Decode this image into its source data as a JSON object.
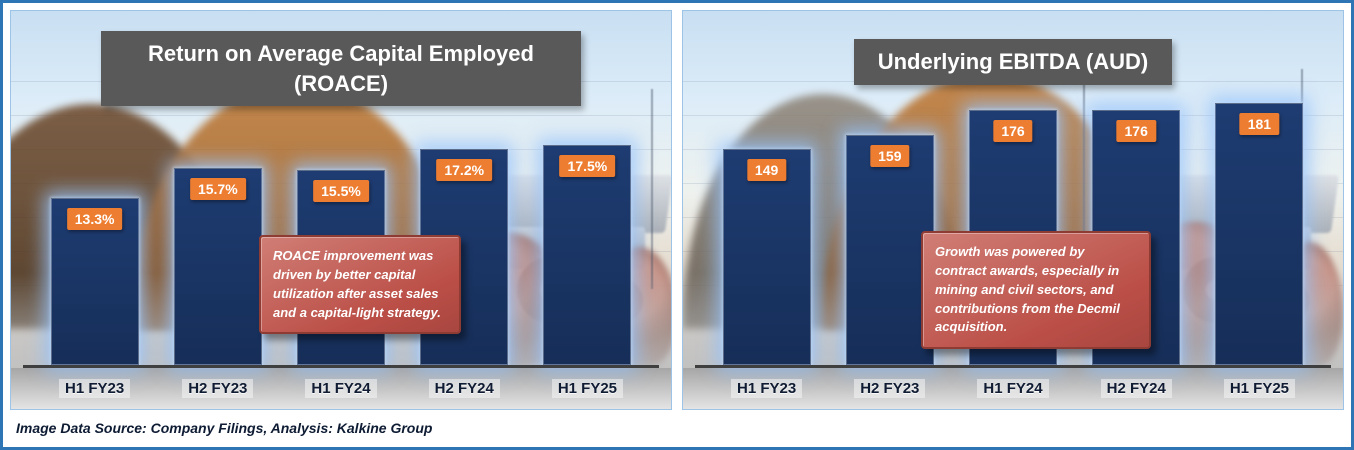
{
  "footer": {
    "text": "Image Data Source: Company Filings, Analysis: Kalkine Group"
  },
  "colors": {
    "frame_border": "#2E75B6",
    "bar_fill": "#16305E",
    "value_label_bg": "#ED7D31",
    "value_label_text": "#FFFFFF",
    "title_banner_bg": "#595959",
    "title_banner_text": "#FFFFFF",
    "annotation_bg": "#BB4F47",
    "annotation_border": "#8E3B34",
    "annotation_text": "#FFFFFF"
  },
  "chart_data": [
    {
      "type": "bar",
      "title": "Return on Average Capital Employed (ROACE)",
      "categories": [
        "H1 FY23",
        "H2 FY23",
        "H1 FY24",
        "H2 FY24",
        "H1 FY25"
      ],
      "values": [
        13.3,
        15.7,
        15.5,
        17.2,
        17.5
      ],
      "value_labels": [
        "13.3%",
        "15.7%",
        "15.5%",
        "17.2%",
        "17.5%"
      ],
      "ylim": [
        0,
        18
      ],
      "grid": false,
      "legend": "none",
      "annotation": "ROACE improvement was driven by better capital utilization after asset sales and a capital-light strategy."
    },
    {
      "type": "bar",
      "title": "Underlying EBITDA (AUD)",
      "categories": [
        "H1 FY23",
        "H2 FY23",
        "H1 FY24",
        "H2 FY24",
        "H1 FY25"
      ],
      "values": [
        149,
        159,
        176,
        176,
        181
      ],
      "value_labels": [
        "149",
        "159",
        "176",
        "176",
        "181"
      ],
      "ylim": [
        0,
        190
      ],
      "grid": false,
      "legend": "none",
      "annotation": "Growth was powered by contract awards, especially in mining and civil sectors, and contributions from the Decmil acquisition."
    }
  ]
}
